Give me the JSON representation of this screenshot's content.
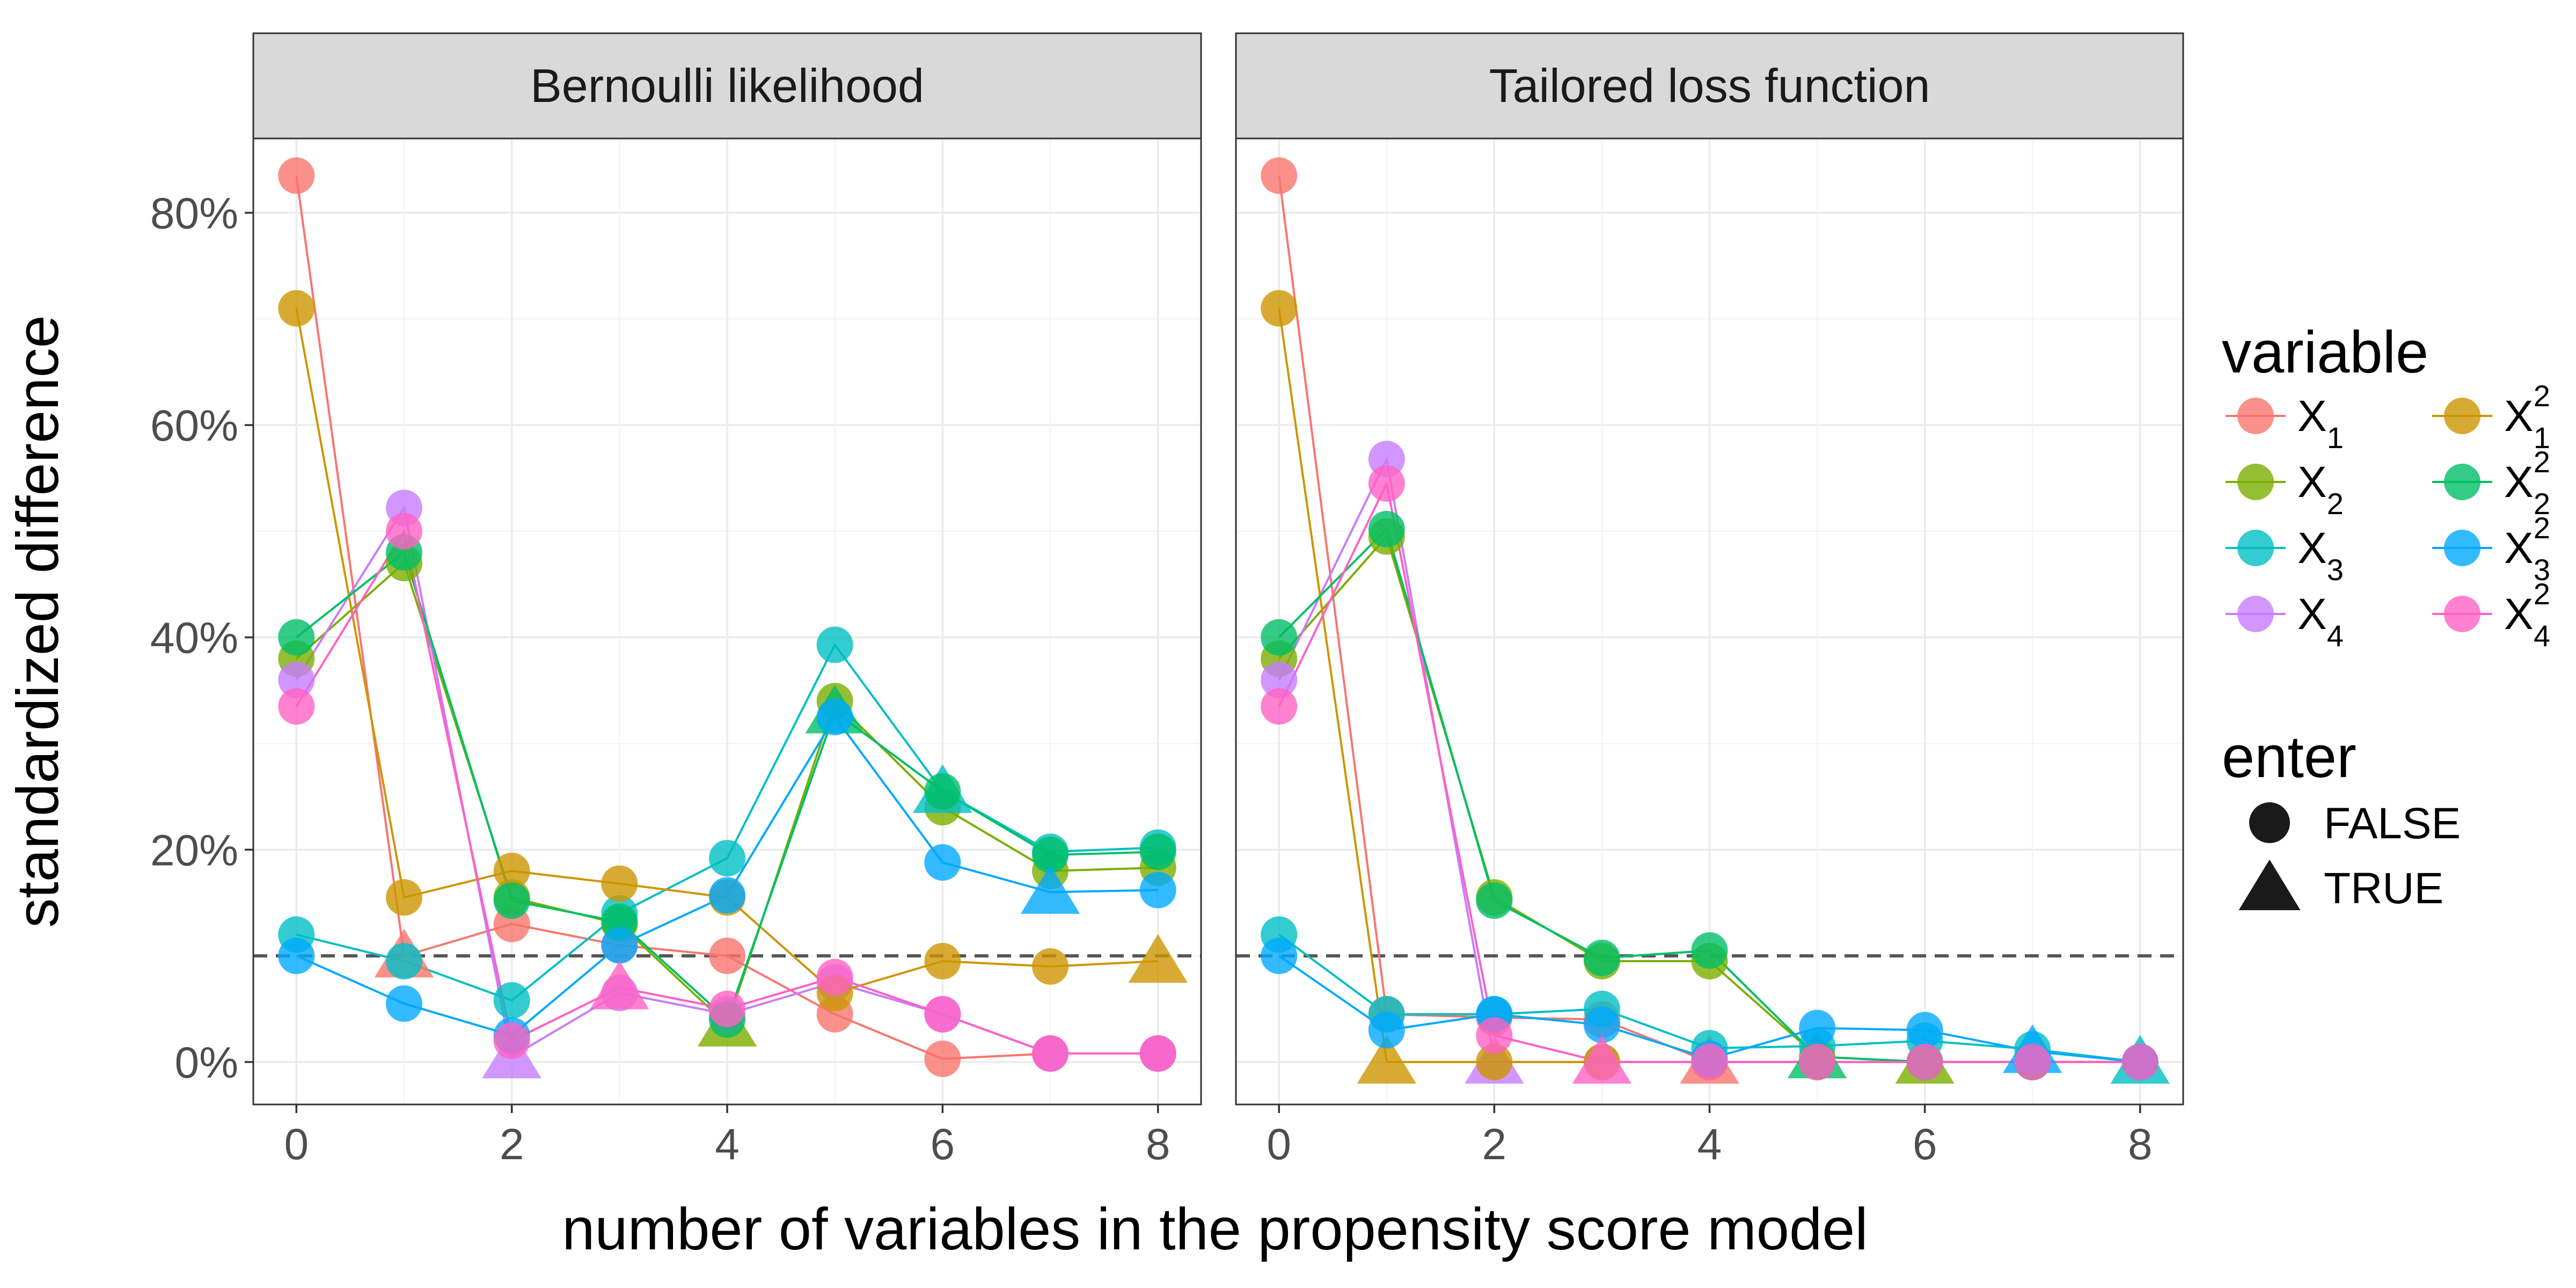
{
  "chart_data": {
    "type": "line",
    "xlabel": "number of variables in the propensity score model",
    "ylabel": "standardized difference",
    "x": [
      0,
      1,
      2,
      3,
      4,
      5,
      6,
      7,
      8
    ],
    "xticks": [
      "0",
      "2",
      "4",
      "6",
      "8"
    ],
    "xlim": [
      -0.4,
      8.4
    ],
    "yticks": [
      "0%",
      "20%",
      "40%",
      "60%",
      "80%"
    ],
    "ylim": [
      -4,
      87
    ],
    "reference_line": 10,
    "legend": {
      "color_title": "variable",
      "shape_title": "enter",
      "shape_entries": [
        "FALSE",
        "TRUE"
      ]
    },
    "series_meta": [
      {
        "key": "x1",
        "base": "X",
        "sub": "1",
        "sup": "",
        "color": "#F8766D"
      },
      {
        "key": "x2",
        "base": "X",
        "sub": "2",
        "sup": "",
        "color": "#7CAE00"
      },
      {
        "key": "x3",
        "base": "X",
        "sub": "3",
        "sup": "",
        "color": "#00BFC4"
      },
      {
        "key": "x4",
        "base": "X",
        "sub": "4",
        "sup": "",
        "color": "#C77CFF"
      },
      {
        "key": "x1sq",
        "base": "X",
        "sub": "1",
        "sup": "2",
        "color": "#CD9600"
      },
      {
        "key": "x2sq",
        "base": "X",
        "sub": "2",
        "sup": "2",
        "color": "#00BE67"
      },
      {
        "key": "x3sq",
        "base": "X",
        "sub": "3",
        "sup": "2",
        "color": "#00A9FF"
      },
      {
        "key": "x4sq",
        "base": "X",
        "sub": "4",
        "sup": "2",
        "color": "#FF61C3"
      }
    ],
    "panels": [
      {
        "title": "Bernoulli likelihood",
        "series": [
          {
            "key": "x1",
            "values": [
              83.5,
              10,
              13,
              11,
              10,
              4.5,
              0.3,
              0.8,
              0.8
            ],
            "enter_at": 1
          },
          {
            "key": "x2",
            "values": [
              38,
              47,
              15.5,
              13,
              3.5,
              34,
              24,
              18,
              18.3
            ],
            "enter_at": 4
          },
          {
            "key": "x3",
            "values": [
              12,
              9.5,
              5.8,
              14,
              19.2,
              39.3,
              25.5,
              19.8,
              20.2
            ],
            "enter_at": 6
          },
          {
            "key": "x4",
            "values": [
              36,
              52.2,
              0.5,
              6.5,
              4.5,
              7.5,
              4.5,
              0.8,
              0.8
            ],
            "enter_at": 2
          },
          {
            "key": "x1sq",
            "values": [
              71,
              15.5,
              18,
              16.8,
              15.5,
              6.5,
              9.5,
              9,
              9.5
            ],
            "enter_at": 8
          },
          {
            "key": "x2sq",
            "values": [
              40,
              48,
              15.2,
              13.2,
              4,
              33,
              25.5,
              19.5,
              19.8
            ],
            "enter_at": 5
          },
          {
            "key": "x3sq",
            "values": [
              10,
              5.5,
              2.5,
              11,
              15.7,
              32.5,
              18.8,
              16,
              16.2
            ],
            "enter_at": 7
          },
          {
            "key": "x4sq",
            "values": [
              33.5,
              50,
              2,
              7,
              5,
              8,
              4.5,
              0.8,
              0.8
            ],
            "enter_at": 3
          }
        ]
      },
      {
        "title": "Tailored loss function",
        "series": [
          {
            "key": "x1",
            "values": [
              83.5,
              4.5,
              4.2,
              4,
              0,
              0,
              0,
              0,
              0
            ],
            "enter_at": 4
          },
          {
            "key": "x2",
            "values": [
              38,
              49.5,
              15.5,
              9.5,
              9.5,
              0.5,
              0,
              0,
              0
            ],
            "enter_at": 6
          },
          {
            "key": "x3",
            "values": [
              12,
              4.5,
              4.5,
              5,
              1.3,
              1.5,
              2,
              1.2,
              0
            ],
            "enter_at": 8
          },
          {
            "key": "x4",
            "values": [
              36,
              56.8,
              0,
              0,
              0,
              0,
              0,
              0,
              0
            ],
            "enter_at": 2
          },
          {
            "key": "x1sq",
            "values": [
              71,
              0,
              0,
              0,
              0,
              0,
              0,
              0,
              0
            ],
            "enter_at": 1
          },
          {
            "key": "x2sq",
            "values": [
              40,
              50.2,
              15.2,
              9.8,
              10.5,
              0.5,
              0,
              0,
              0
            ],
            "enter_at": 5
          },
          {
            "key": "x3sq",
            "values": [
              10,
              3,
              4.5,
              3.5,
              0.3,
              3.2,
              3,
              1,
              0
            ],
            "enter_at": 7
          },
          {
            "key": "x4sq",
            "values": [
              33.5,
              54.5,
              2.5,
              0,
              0,
              0,
              0,
              0,
              0
            ],
            "enter_at": 3
          }
        ]
      }
    ]
  }
}
